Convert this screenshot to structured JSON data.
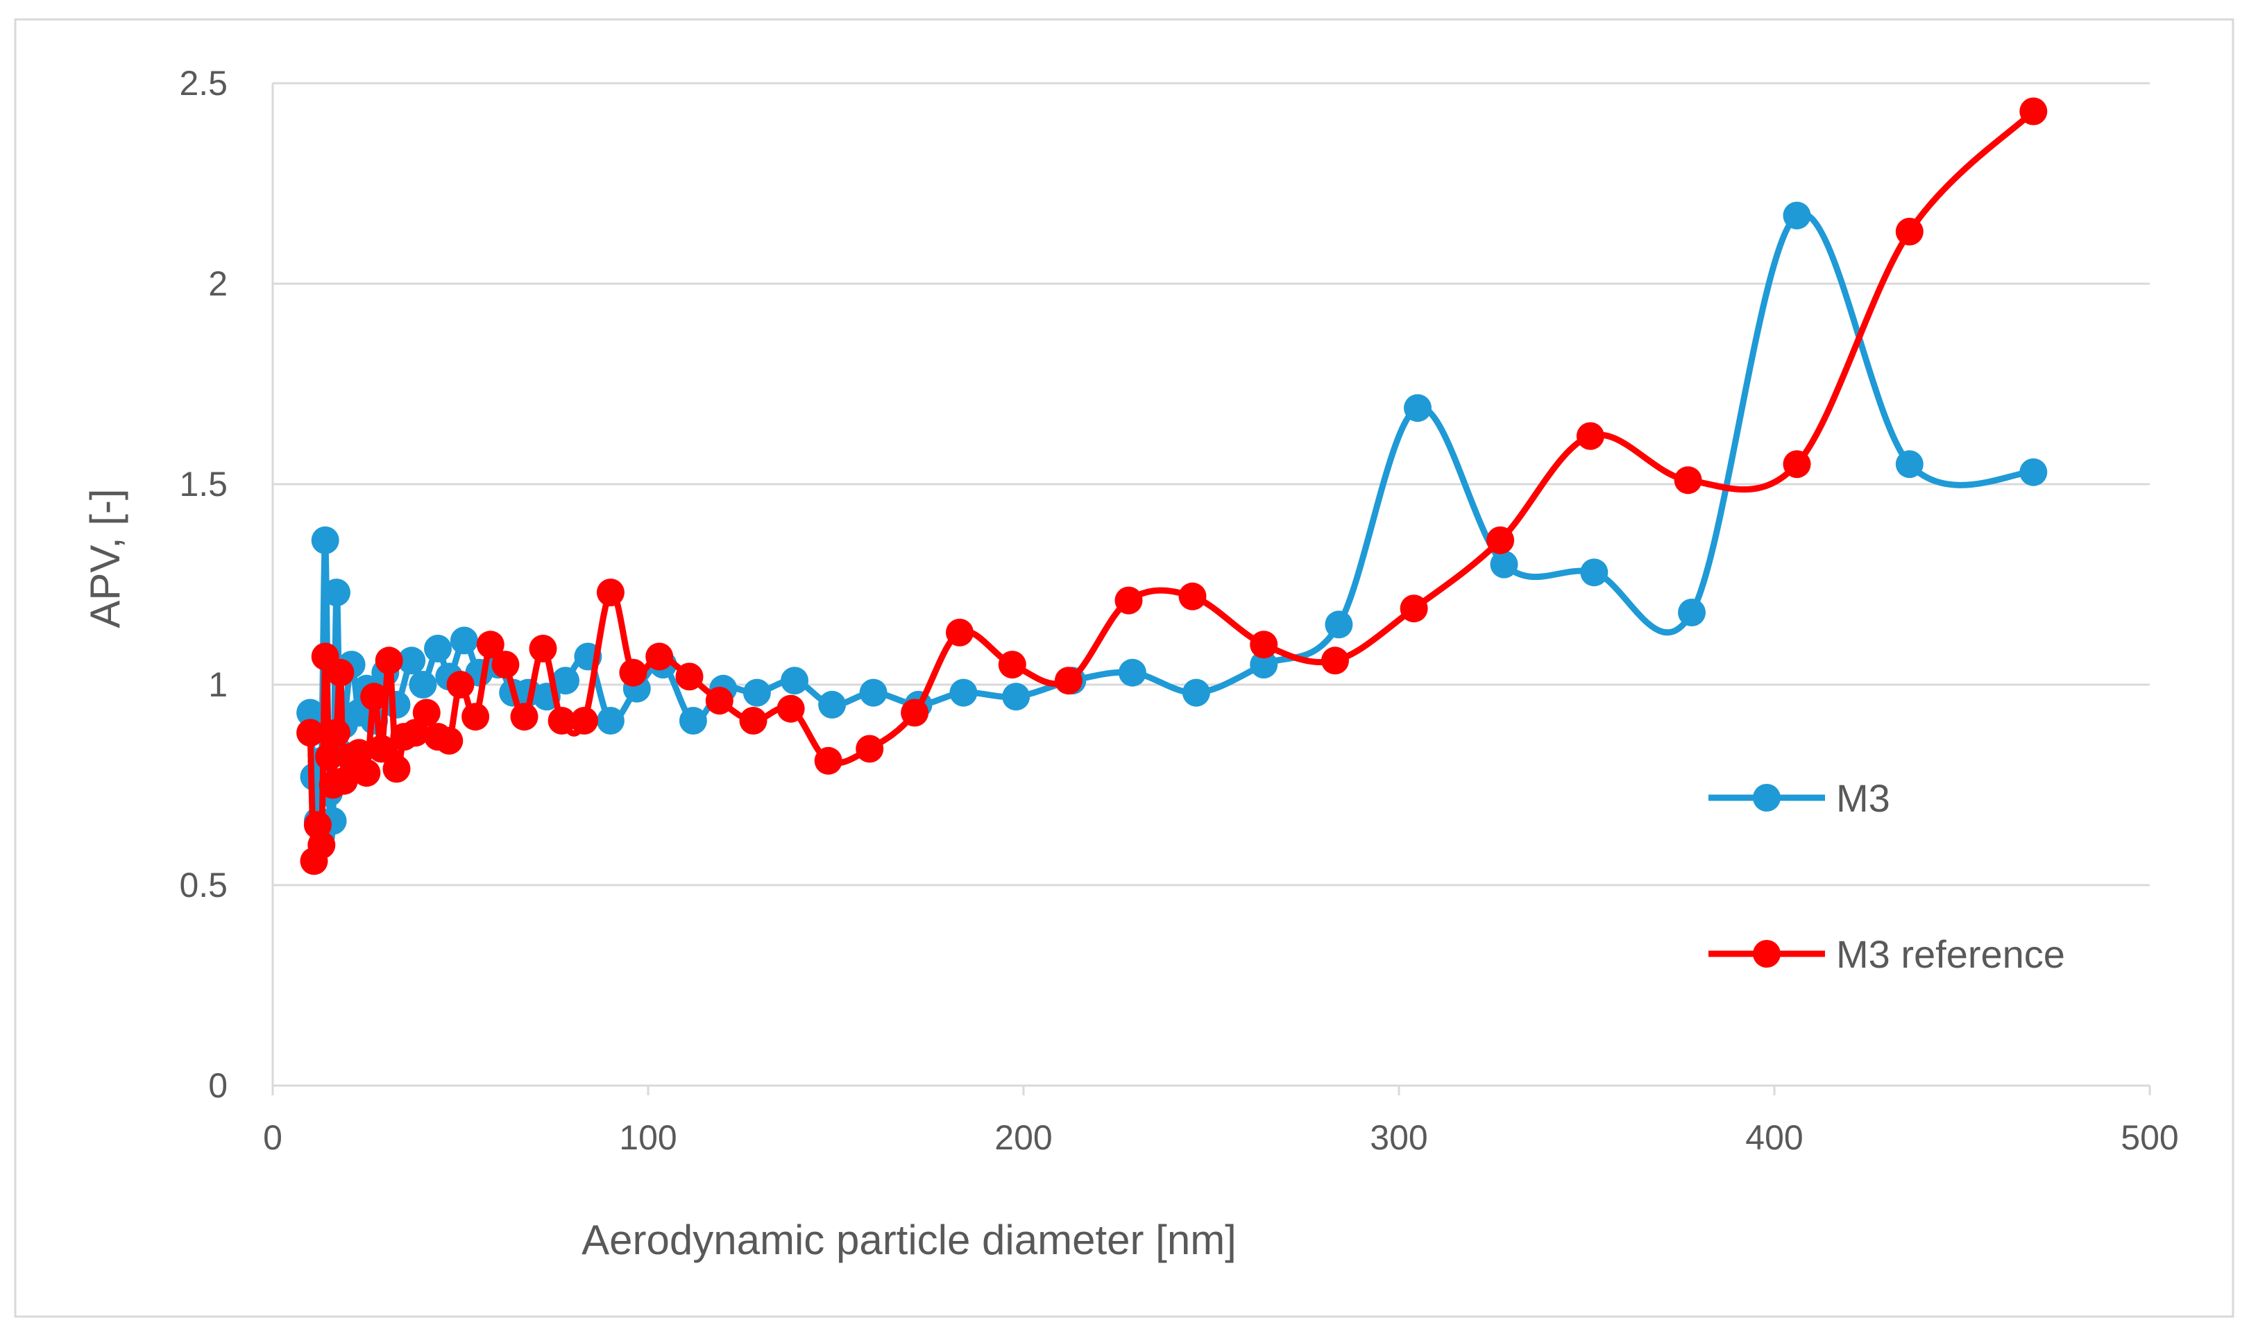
{
  "chart_data": {
    "type": "line",
    "xlabel": "Aerodynamic particle diameter [nm]",
    "ylabel": "APV, [-]",
    "xlim": [
      0,
      500
    ],
    "ylim": [
      0,
      2.5
    ],
    "x_ticks": [
      "0",
      "100",
      "200",
      "300",
      "400",
      "500"
    ],
    "y_ticks": [
      "0",
      "0.5",
      "1",
      "1.5",
      "2",
      "2.5"
    ],
    "grid": "horizontal",
    "legend_position": "right",
    "smooth": true,
    "series": [
      {
        "name": "M3",
        "color": "#1f9ad6",
        "points": [
          [
            10,
            0.93
          ],
          [
            11,
            0.77
          ],
          [
            12,
            0.66
          ],
          [
            13,
            0.81
          ],
          [
            14,
            1.36
          ],
          [
            15,
            0.73
          ],
          [
            16,
            0.66
          ],
          [
            17,
            1.23
          ],
          [
            18,
            0.83
          ],
          [
            19,
            0.9
          ],
          [
            21,
            1.05
          ],
          [
            23,
            0.93
          ],
          [
            25,
            0.99
          ],
          [
            27,
            0.91
          ],
          [
            30,
            1.03
          ],
          [
            33,
            0.95
          ],
          [
            37,
            1.06
          ],
          [
            40,
            1.0
          ],
          [
            44,
            1.09
          ],
          [
            47,
            1.02
          ],
          [
            51,
            1.11
          ],
          [
            55,
            1.03
          ],
          [
            60,
            1.05
          ],
          [
            64,
            0.98
          ],
          [
            68,
            0.98
          ],
          [
            73,
            0.97
          ],
          [
            78,
            1.01
          ],
          [
            84,
            1.07
          ],
          [
            90,
            0.91
          ],
          [
            97,
            0.99
          ],
          [
            104,
            1.05
          ],
          [
            112,
            0.91
          ],
          [
            120,
            0.99
          ],
          [
            129,
            0.98
          ],
          [
            139,
            1.01
          ],
          [
            149,
            0.95
          ],
          [
            160,
            0.98
          ],
          [
            172,
            0.95
          ],
          [
            184,
            0.98
          ],
          [
            198,
            0.97
          ],
          [
            213,
            1.01
          ],
          [
            229,
            1.03
          ],
          [
            246,
            0.98
          ],
          [
            264,
            1.05
          ],
          [
            284,
            1.15
          ],
          [
            305,
            1.69
          ],
          [
            328,
            1.3
          ],
          [
            352,
            1.28
          ],
          [
            378,
            1.18
          ],
          [
            406,
            2.17
          ],
          [
            436,
            1.55
          ],
          [
            469,
            1.53
          ]
        ]
      },
      {
        "name": "M3 reference",
        "color": "#ff0000",
        "points": [
          [
            10,
            0.88
          ],
          [
            11,
            0.56
          ],
          [
            12,
            0.65
          ],
          [
            13,
            0.6
          ],
          [
            14,
            1.07
          ],
          [
            15,
            0.82
          ],
          [
            16,
            0.75
          ],
          [
            17,
            0.88
          ],
          [
            18,
            1.03
          ],
          [
            19,
            0.76
          ],
          [
            21,
            0.82
          ],
          [
            23,
            0.83
          ],
          [
            25,
            0.78
          ],
          [
            27,
            0.97
          ],
          [
            29,
            0.84
          ],
          [
            31,
            1.06
          ],
          [
            33,
            0.79
          ],
          [
            35,
            0.87
          ],
          [
            38,
            0.88
          ],
          [
            41,
            0.93
          ],
          [
            44,
            0.87
          ],
          [
            47,
            0.86
          ],
          [
            50,
            1.0
          ],
          [
            54,
            0.92
          ],
          [
            58,
            1.1
          ],
          [
            62,
            1.05
          ],
          [
            67,
            0.92
          ],
          [
            72,
            1.09
          ],
          [
            77,
            0.91
          ],
          [
            83,
            0.91
          ],
          [
            90,
            1.23
          ],
          [
            96,
            1.03
          ],
          [
            103,
            1.07
          ],
          [
            111,
            1.02
          ],
          [
            119,
            0.96
          ],
          [
            128,
            0.91
          ],
          [
            138,
            0.94
          ],
          [
            148,
            0.81
          ],
          [
            159,
            0.84
          ],
          [
            171,
            0.93
          ],
          [
            183,
            1.13
          ],
          [
            197,
            1.05
          ],
          [
            212,
            1.01
          ],
          [
            228,
            1.21
          ],
          [
            245,
            1.22
          ],
          [
            264,
            1.1
          ],
          [
            283,
            1.06
          ],
          [
            304,
            1.19
          ],
          [
            327,
            1.36
          ],
          [
            351,
            1.62
          ],
          [
            377,
            1.51
          ],
          [
            406,
            1.55
          ],
          [
            436,
            2.13
          ],
          [
            469,
            2.43
          ]
        ]
      }
    ]
  }
}
